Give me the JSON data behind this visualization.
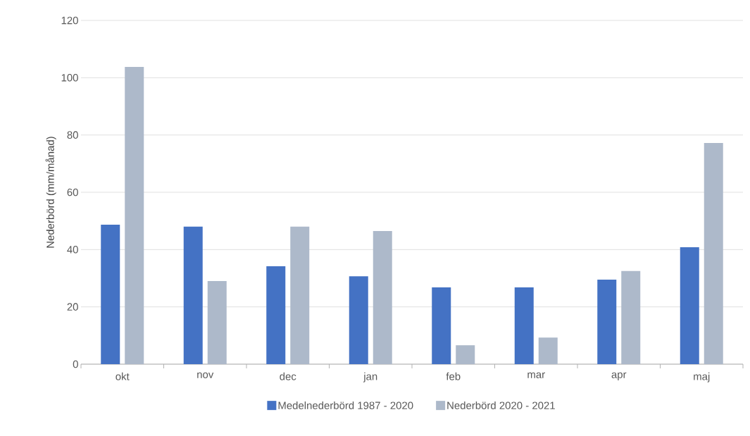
{
  "chart_data": {
    "type": "bar",
    "ylabel": "Nederbörd (mm/månad)",
    "categories": [
      "okt",
      "nov",
      "dec",
      "jan",
      "feb",
      "mar",
      "apr",
      "maj"
    ],
    "series": [
      {
        "name": "Medelnederbörd 1987 - 2020",
        "color": "#4472c4",
        "values": [
          48.7,
          48.0,
          34.2,
          30.7,
          26.8,
          26.8,
          29.5,
          40.8
        ]
      },
      {
        "name": "Nederbörd 2020 - 2021",
        "color": "#adb9ca",
        "values": [
          103.8,
          29.0,
          48.0,
          46.5,
          6.6,
          9.3,
          32.5,
          77.2
        ]
      }
    ],
    "ylim": [
      0,
      120
    ],
    "yticks": [
      0,
      20,
      40,
      60,
      80,
      100,
      120
    ],
    "grid": "y",
    "legend": "bottom"
  }
}
